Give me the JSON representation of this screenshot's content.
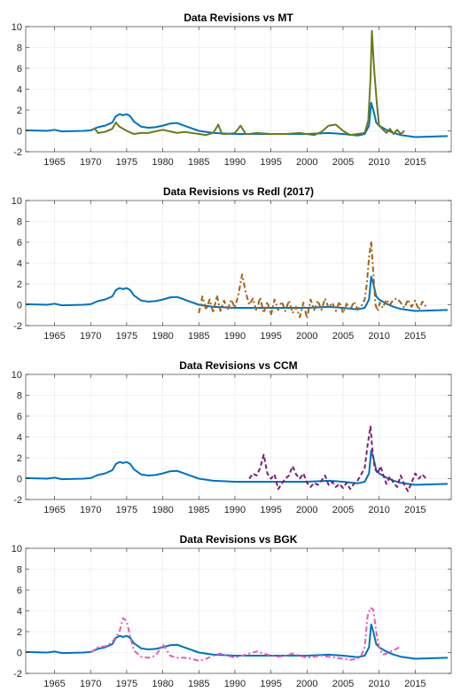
{
  "chart_data": [
    {
      "type": "line",
      "title": "Data Revisions vs MT",
      "xlim": [
        1961,
        2020
      ],
      "ylim": [
        -2,
        10
      ],
      "xticks": [
        1965,
        1970,
        1975,
        1980,
        1985,
        1990,
        1995,
        2000,
        2005,
        2010,
        2015
      ],
      "yticks": [
        -2,
        0,
        2,
        4,
        6,
        8,
        10
      ],
      "grid": true,
      "series": [
        {
          "color": "#0072BD",
          "style": "solid",
          "width": 2,
          "x": [
            1961,
            1964,
            1965,
            1966,
            1969,
            1970,
            1971,
            1972,
            1973,
            1973.5,
            1974,
            1974.5,
            1975,
            1975.5,
            1976,
            1977,
            1978,
            1979,
            1980,
            1981,
            1982,
            1983,
            1985,
            1987,
            1990,
            1995,
            2000,
            2003,
            2005,
            2007,
            2008,
            2008.6,
            2008.9,
            2009.2,
            2009.6,
            2010,
            2011,
            2012,
            2013,
            2015,
            2017,
            2019.5
          ],
          "y": [
            0.05,
            0.0,
            0.1,
            -0.05,
            0.0,
            0.05,
            0.35,
            0.5,
            0.8,
            1.4,
            1.6,
            1.5,
            1.6,
            1.4,
            0.9,
            0.4,
            0.3,
            0.35,
            0.5,
            0.7,
            0.75,
            0.5,
            0.0,
            -0.2,
            -0.3,
            -0.3,
            -0.3,
            -0.2,
            -0.3,
            -0.45,
            -0.3,
            0.5,
            2.7,
            2.0,
            0.8,
            0.5,
            0.1,
            -0.2,
            -0.4,
            -0.6,
            -0.55,
            -0.5
          ]
        },
        {
          "color": "#6B7A1F",
          "style": "solid",
          "width": 2,
          "x": [
            1970.5,
            1971,
            1972,
            1973,
            1973.5,
            1974,
            1975,
            1976,
            1977,
            1978,
            1980,
            1982,
            1983,
            1985,
            1986,
            1987,
            1987.7,
            1988.2,
            1989,
            1990,
            1990.8,
            1991.5,
            1992,
            1993,
            1995,
            1997,
            1999,
            2001,
            2002,
            2003,
            2004,
            2005,
            2006,
            2007,
            2008,
            2008.5,
            2008.8,
            2009.0,
            2009.3,
            2009.7,
            2010,
            2011,
            2011.5,
            2012,
            2012.5,
            2013,
            2013.5
          ],
          "y": [
            0.3,
            -0.2,
            -0.1,
            0.2,
            0.8,
            0.4,
            0.0,
            -0.3,
            -0.2,
            -0.2,
            0.1,
            -0.2,
            -0.1,
            -0.3,
            -0.4,
            -0.2,
            0.6,
            -0.3,
            -0.3,
            -0.2,
            0.5,
            -0.3,
            -0.3,
            -0.2,
            -0.3,
            -0.3,
            -0.2,
            -0.4,
            -0.1,
            0.5,
            0.6,
            0.0,
            -0.4,
            -0.3,
            -0.2,
            1.0,
            5.0,
            9.6,
            6.0,
            2.5,
            0.5,
            -0.2,
            0.2,
            -0.3,
            0.1,
            -0.3,
            0.0
          ]
        }
      ]
    },
    {
      "type": "line",
      "title": "Data Revisions vs Redl (2017)",
      "xlim": [
        1961,
        2020
      ],
      "ylim": [
        -2,
        10
      ],
      "xticks": [
        1965,
        1970,
        1975,
        1980,
        1985,
        1990,
        1995,
        2000,
        2005,
        2010,
        2015
      ],
      "yticks": [
        -2,
        0,
        2,
        4,
        6,
        8,
        10
      ],
      "grid": true,
      "series": [
        {
          "color": "#0072BD",
          "style": "solid",
          "width": 2,
          "x": [
            1961,
            1964,
            1965,
            1966,
            1969,
            1970,
            1971,
            1972,
            1973,
            1973.5,
            1974,
            1974.5,
            1975,
            1975.5,
            1976,
            1977,
            1978,
            1979,
            1980,
            1981,
            1982,
            1983,
            1985,
            1987,
            1990,
            1995,
            2000,
            2003,
            2005,
            2007,
            2008,
            2008.6,
            2008.9,
            2009.2,
            2009.6,
            2010,
            2011,
            2012,
            2013,
            2015,
            2017,
            2019.5
          ],
          "y": [
            0.05,
            0.0,
            0.1,
            -0.05,
            0.0,
            0.05,
            0.35,
            0.5,
            0.8,
            1.4,
            1.6,
            1.5,
            1.6,
            1.4,
            0.9,
            0.4,
            0.3,
            0.35,
            0.5,
            0.7,
            0.75,
            0.5,
            0.0,
            -0.2,
            -0.3,
            -0.3,
            -0.3,
            -0.2,
            -0.3,
            -0.45,
            -0.3,
            0.5,
            2.7,
            2.0,
            0.8,
            0.5,
            0.1,
            -0.2,
            -0.4,
            -0.6,
            -0.55,
            -0.5
          ]
        },
        {
          "color": "#A0621A",
          "style": "dashdot",
          "width": 2,
          "x": [
            1985,
            1985.5,
            1986,
            1986.5,
            1987,
            1987.5,
            1988,
            1988.5,
            1989,
            1989.5,
            1990,
            1990.5,
            1991,
            1991.5,
            1992,
            1992.5,
            1993,
            1993.5,
            1994,
            1994.5,
            1995,
            1995.5,
            1996,
            1996.5,
            1997,
            1997.5,
            1998,
            1998.5,
            1999,
            1999.5,
            2000,
            2000.5,
            2001,
            2001.5,
            2002,
            2002.5,
            2003,
            2003.5,
            2004,
            2004.5,
            2005,
            2005.5,
            2006,
            2006.5,
            2007,
            2007.5,
            2008,
            2008.3,
            2008.6,
            2008.9,
            2009.2,
            2009.5,
            2009.8,
            2010.1,
            2010.5,
            2011,
            2011.5,
            2012,
            2012.5,
            2013,
            2013.5,
            2014,
            2014.5,
            2015,
            2015.5,
            2016,
            2016.5
          ],
          "y": [
            -0.8,
            0.8,
            -0.5,
            0.5,
            -0.8,
            0.9,
            -0.6,
            0.4,
            -0.5,
            0.5,
            -0.3,
            1.0,
            2.9,
            1.2,
            0.0,
            0.6,
            -0.6,
            0.7,
            -0.8,
            0.3,
            -1.0,
            0.5,
            -0.5,
            0.3,
            -0.6,
            0.4,
            -0.8,
            -0.2,
            -1.2,
            0.2,
            -1.3,
            0.5,
            -0.5,
            0.4,
            -0.5,
            0.6,
            -0.3,
            0.2,
            -0.6,
            0.3,
            -0.8,
            0.1,
            -0.5,
            0.3,
            -0.4,
            -0.2,
            0.5,
            2.0,
            4.5,
            6.1,
            3.0,
            0.0,
            -0.6,
            0.2,
            -0.3,
            0.5,
            0.0,
            0.5,
            0.6,
            0.2,
            -0.3,
            0.5,
            -0.2,
            0.4,
            -0.5,
            0.3,
            -0.2
          ]
        }
      ]
    },
    {
      "type": "line",
      "title": "Data Revisions vs CCM",
      "xlim": [
        1961,
        2020
      ],
      "ylim": [
        -2,
        10
      ],
      "xticks": [
        1965,
        1970,
        1975,
        1980,
        1985,
        1990,
        1995,
        2000,
        2005,
        2010,
        2015
      ],
      "yticks": [
        -2,
        0,
        2,
        4,
        6,
        8,
        10
      ],
      "grid": true,
      "series": [
        {
          "color": "#0072BD",
          "style": "solid",
          "width": 2,
          "x": [
            1961,
            1964,
            1965,
            1966,
            1969,
            1970,
            1971,
            1972,
            1973,
            1973.5,
            1974,
            1974.5,
            1975,
            1975.5,
            1976,
            1977,
            1978,
            1979,
            1980,
            1981,
            1982,
            1983,
            1985,
            1987,
            1990,
            1995,
            2000,
            2003,
            2005,
            2007,
            2008,
            2008.6,
            2008.9,
            2009.2,
            2009.6,
            2010,
            2011,
            2012,
            2013,
            2015,
            2017,
            2019.5
          ],
          "y": [
            0.05,
            0.0,
            0.1,
            -0.05,
            0.0,
            0.05,
            0.35,
            0.5,
            0.8,
            1.4,
            1.6,
            1.5,
            1.6,
            1.4,
            0.9,
            0.4,
            0.3,
            0.35,
            0.5,
            0.7,
            0.75,
            0.5,
            0.0,
            -0.2,
            -0.3,
            -0.3,
            -0.3,
            -0.2,
            -0.3,
            -0.45,
            -0.3,
            0.5,
            2.7,
            2.0,
            0.8,
            0.5,
            0.1,
            -0.2,
            -0.4,
            -0.6,
            -0.55,
            -0.5
          ]
        },
        {
          "color": "#7E1E73",
          "style": "dashed",
          "width": 2,
          "x": [
            1992,
            1992.5,
            1993,
            1993.5,
            1994,
            1994.5,
            1995,
            1995.5,
            1996,
            1996.5,
            1997,
            1997.5,
            1998,
            1998.5,
            1999,
            1999.5,
            2000,
            2000.5,
            2001,
            2001.5,
            2002,
            2002.5,
            2003,
            2003.5,
            2004,
            2004.5,
            2005,
            2005.5,
            2006,
            2006.5,
            2007,
            2007.5,
            2008,
            2008.4,
            2008.8,
            2009.1,
            2009.4,
            2009.8,
            2010.2,
            2010.6,
            2011,
            2011.5,
            2012,
            2012.5,
            2013,
            2013.5,
            2014,
            2014.5,
            2015,
            2015.5,
            2016,
            2016.5
          ],
          "y": [
            0.0,
            0.5,
            0.3,
            1.0,
            2.3,
            0.5,
            0.0,
            0.4,
            -1.0,
            -0.5,
            0.0,
            0.3,
            1.2,
            0.4,
            0.0,
            0.5,
            -0.4,
            -0.8,
            -0.4,
            -0.6,
            -0.2,
            0.3,
            -0.6,
            -0.3,
            -0.8,
            -0.5,
            -0.9,
            -0.4,
            -1.0,
            -0.5,
            -0.2,
            0.4,
            1.0,
            3.2,
            5.0,
            2.5,
            1.0,
            0.5,
            1.2,
            0.3,
            -0.5,
            0.2,
            -0.4,
            -0.8,
            0.3,
            -0.6,
            -1.2,
            -0.4,
            0.5,
            0.0,
            0.4,
            0.0
          ]
        }
      ]
    },
    {
      "type": "line",
      "title": "Data Revisions vs BGK",
      "xlim": [
        1961,
        2020
      ],
      "ylim": [
        -2,
        10
      ],
      "xticks": [
        1965,
        1970,
        1975,
        1980,
        1985,
        1990,
        1995,
        2000,
        2005,
        2010,
        2015
      ],
      "yticks": [
        -2,
        0,
        2,
        4,
        6,
        8,
        10
      ],
      "grid": true,
      "series": [
        {
          "color": "#0072BD",
          "style": "solid",
          "width": 2,
          "x": [
            1961,
            1964,
            1965,
            1966,
            1969,
            1970,
            1971,
            1972,
            1973,
            1973.5,
            1974,
            1974.5,
            1975,
            1975.5,
            1976,
            1977,
            1978,
            1979,
            1980,
            1981,
            1982,
            1983,
            1985,
            1987,
            1990,
            1995,
            2000,
            2003,
            2005,
            2007,
            2008,
            2008.6,
            2008.9,
            2009.2,
            2009.6,
            2010,
            2011,
            2012,
            2013,
            2015,
            2017,
            2019.5
          ],
          "y": [
            0.05,
            0.0,
            0.1,
            -0.05,
            0.0,
            0.05,
            0.35,
            0.5,
            0.8,
            1.4,
            1.6,
            1.5,
            1.6,
            1.4,
            0.9,
            0.4,
            0.3,
            0.35,
            0.5,
            0.7,
            0.75,
            0.5,
            0.0,
            -0.2,
            -0.3,
            -0.3,
            -0.3,
            -0.2,
            -0.3,
            -0.45,
            -0.3,
            0.5,
            2.7,
            2.0,
            0.8,
            0.5,
            0.1,
            -0.2,
            -0.4,
            -0.6,
            -0.55,
            -0.5
          ]
        },
        {
          "color": "#E85AB8",
          "style": "dashdot",
          "width": 2,
          "x": [
            1970,
            1971,
            1972,
            1973,
            1974,
            1974.5,
            1975,
            1975.5,
            1976,
            1977,
            1978,
            1979,
            1979.5,
            1980,
            1980.5,
            1981,
            1982,
            1983,
            1984,
            1985,
            1986,
            1987,
            1988,
            1989,
            1990,
            1991,
            1992,
            1993,
            1994,
            1995,
            1996,
            1997,
            1998,
            1999,
            2000,
            2001,
            2002,
            2003,
            2004,
            2005,
            2006,
            2007,
            2007.5,
            2008,
            2008.4,
            2008.8,
            2009.2,
            2009.6,
            2010,
            2010.5,
            2011,
            2011.5,
            2012,
            2013
          ],
          "y": [
            0.0,
            0.5,
            0.6,
            1.0,
            2.0,
            3.3,
            3.0,
            1.5,
            0.2,
            -0.4,
            -0.5,
            -0.3,
            0.2,
            0.8,
            0.3,
            -0.3,
            -0.5,
            -0.5,
            -0.6,
            -0.8,
            -0.6,
            -0.3,
            -0.1,
            -0.3,
            -0.5,
            -0.3,
            -0.1,
            0.1,
            -0.1,
            -0.3,
            -0.4,
            -0.3,
            -0.1,
            -0.3,
            -0.5,
            -0.4,
            -0.3,
            -0.4,
            -0.5,
            -0.6,
            -0.7,
            -0.6,
            -0.3,
            0.5,
            3.5,
            4.3,
            4.1,
            2.0,
            0.5,
            -0.2,
            -0.1,
            0.1,
            0.2,
            0.6
          ]
        }
      ]
    }
  ]
}
